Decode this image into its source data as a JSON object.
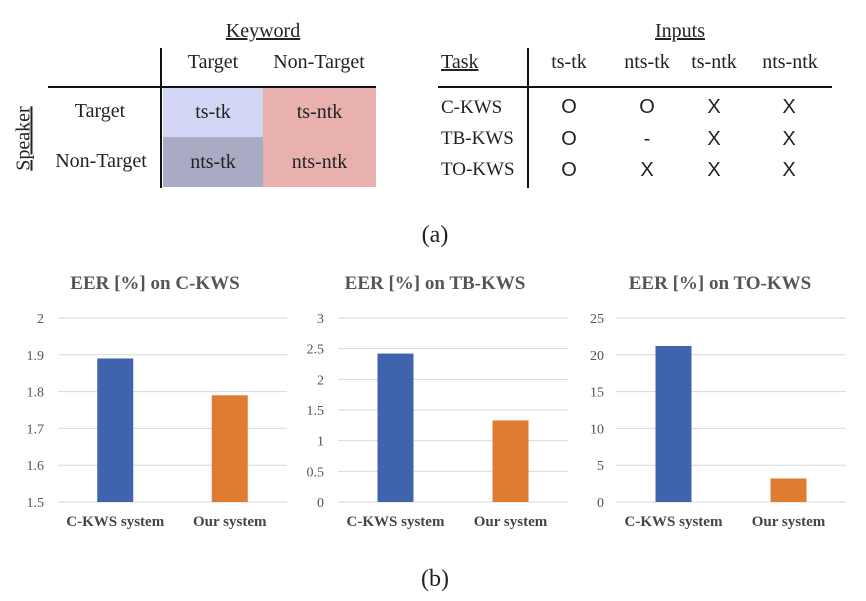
{
  "panel_a": {
    "matrix": {
      "keyword_header": "Keyword",
      "speaker_header": "Speaker",
      "col_labels": [
        "Target",
        "Non-Target"
      ],
      "row_labels": [
        "Target",
        "Non-Target"
      ],
      "cells": [
        [
          "ts-tk",
          "ts-ntk"
        ],
        [
          "nts-tk",
          "nts-ntk"
        ]
      ],
      "cell_colors": [
        [
          "#d3d6f5",
          "#e8b1ad"
        ],
        [
          "#a9aac3",
          "#e8b1ad"
        ]
      ]
    },
    "table": {
      "inputs_header": "Inputs",
      "task_header": "Task",
      "columns": [
        "ts-tk",
        "nts-tk",
        "ts-ntk",
        "nts-ntk"
      ],
      "rows": [
        {
          "task": "C-KWS",
          "marks": [
            "O",
            "O",
            "X",
            "X"
          ]
        },
        {
          "task": "TB-KWS",
          "marks": [
            "O",
            "-",
            "X",
            "X"
          ]
        },
        {
          "task": "TO-KWS",
          "marks": [
            "O",
            "X",
            "X",
            "X"
          ]
        }
      ]
    },
    "caption": "(a)"
  },
  "panel_b_caption": "(b)",
  "chart_data": [
    {
      "type": "bar",
      "title": "EER [%] on C-KWS",
      "categories": [
        "C-KWS system",
        "Our system"
      ],
      "values": [
        1.89,
        1.79
      ],
      "colors": [
        "#4063ad",
        "#e07b32"
      ],
      "ylim": [
        1.5,
        2
      ],
      "yticks": [
        "2",
        "1.9",
        "1.8",
        "1.7",
        "1.6",
        "1.5"
      ],
      "ytick_values": [
        2,
        1.9,
        1.8,
        1.7,
        1.6,
        1.5
      ],
      "grid": true
    },
    {
      "type": "bar",
      "title": "EER [%] on TB-KWS",
      "categories": [
        "C-KWS system",
        "Our system"
      ],
      "values": [
        2.42,
        1.33
      ],
      "colors": [
        "#4063ad",
        "#e07b32"
      ],
      "ylim": [
        0,
        3
      ],
      "yticks": [
        "3",
        "2.5",
        "2",
        "1.5",
        "1",
        "0.5",
        "0"
      ],
      "ytick_values": [
        3,
        2.5,
        2,
        1.5,
        1,
        0.5,
        0
      ],
      "grid": true
    },
    {
      "type": "bar",
      "title": "EER [%] on TO-KWS",
      "categories": [
        "C-KWS system",
        "Our system"
      ],
      "values": [
        21.2,
        3.2
      ],
      "colors": [
        "#4063ad",
        "#e07b32"
      ],
      "ylim": [
        0,
        25
      ],
      "yticks": [
        "25",
        "20",
        "15",
        "10",
        "5",
        "0"
      ],
      "ytick_values": [
        25,
        20,
        15,
        10,
        5,
        0
      ],
      "grid": true
    }
  ]
}
